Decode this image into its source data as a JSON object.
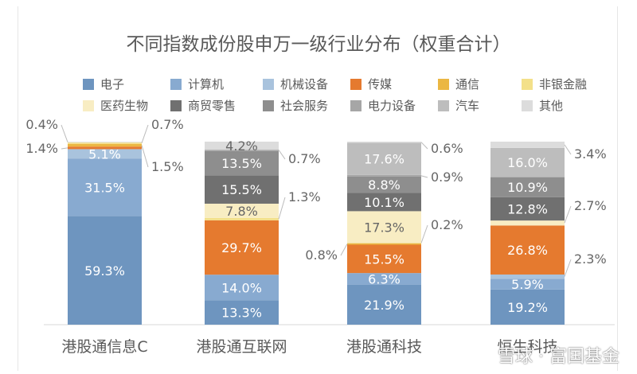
{
  "chart_data": {
    "type": "bar",
    "stacked": true,
    "title": "不同指数成份股申万一级行业分布（权重合计）",
    "categories": [
      "港股通信息C",
      "港股通互联网",
      "港股通科技",
      "恒生科技"
    ],
    "legend_placement": "top",
    "grid": false,
    "ylim": [
      0,
      100
    ],
    "series": [
      {
        "name": "电子",
        "color": "#6e95bf",
        "values": [
          59.3,
          13.3,
          21.9,
          19.2
        ]
      },
      {
        "name": "计算机",
        "color": "#88aad0",
        "values": [
          31.5,
          14.0,
          6.3,
          5.9
        ]
      },
      {
        "name": "机械设备",
        "color": "#a9c3dd",
        "values": [
          5.1,
          0,
          0,
          2.3
        ]
      },
      {
        "name": "传媒",
        "color": "#e57a2f",
        "values": [
          1.4,
          29.7,
          15.5,
          26.8
        ]
      },
      {
        "name": "通信",
        "color": "#ebb743",
        "values": [
          1.5,
          0,
          0.8,
          0
        ]
      },
      {
        "name": "非银金融",
        "color": "#f3e08a",
        "values": [
          0.7,
          1.3,
          0.2,
          0
        ]
      },
      {
        "name": "医药生物",
        "color": "#f8edc3",
        "values": [
          0,
          7.8,
          17.3,
          2.7
        ]
      },
      {
        "name": "商贸零售",
        "color": "#707070",
        "values": [
          0,
          15.5,
          10.1,
          12.8
        ]
      },
      {
        "name": "社会服务",
        "color": "#8e8e8e",
        "values": [
          0,
          13.5,
          8.8,
          10.9
        ]
      },
      {
        "name": "电力设备",
        "color": "#a6a6a6",
        "values": [
          0,
          0,
          0.9,
          0
        ]
      },
      {
        "name": "汽车",
        "color": "#bdbdbd",
        "values": [
          0,
          0.7,
          17.6,
          16.0
        ]
      },
      {
        "name": "其他",
        "color": "#dcdcdc",
        "values": [
          0.4,
          4.2,
          0.6,
          3.4
        ]
      }
    ]
  },
  "watermark": "雪球 · 富国基金"
}
